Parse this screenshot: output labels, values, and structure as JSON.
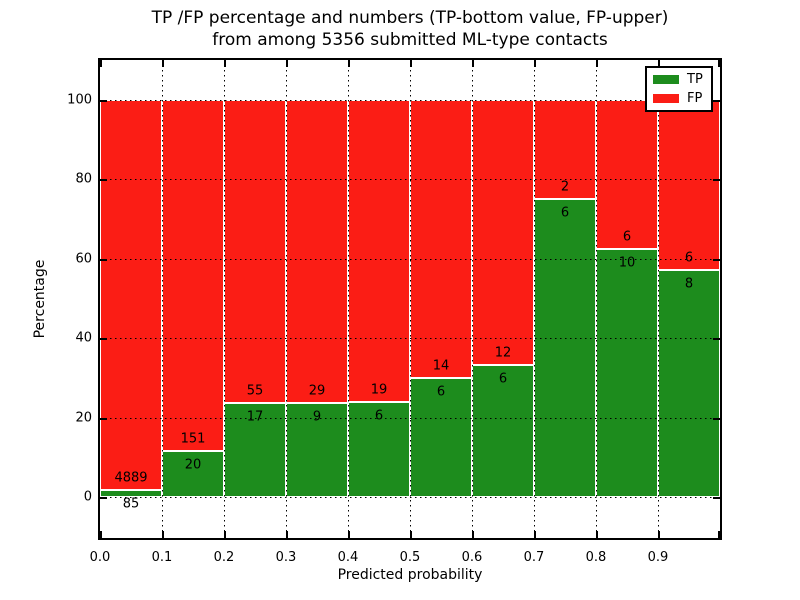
{
  "title": {
    "line1": "TP /FP percentage and numbers (TP-bottom value, FP-upper)",
    "line2": "from among 5356 submitted ML-type contacts"
  },
  "axes": {
    "x_label": "Predicted probability",
    "y_label": "Percentage",
    "x_tick_labels": [
      "0.0",
      "0.1",
      "0.2",
      "0.3",
      "0.4",
      "0.5",
      "0.6",
      "0.7",
      "0.8",
      "0.9"
    ],
    "y_tick_labels": [
      "0",
      "20",
      "40",
      "60",
      "80",
      "100"
    ],
    "y_tick_values": [
      0,
      20,
      40,
      60,
      80,
      100
    ]
  },
  "legend": [
    {
      "label": "TP",
      "color": "#1d8c1d"
    },
    {
      "label": "FP",
      "color": "#fb1d15"
    }
  ],
  "colors": {
    "tp_green": "#1d8c1d",
    "fp_red": "#fb1d15",
    "bar_edge": "#ffffff",
    "grid": "#000000",
    "background": "#ffffff"
  },
  "chart_data": {
    "type": "bar",
    "stacked": true,
    "normalized_to_percent": true,
    "title": "TP /FP percentage and numbers (TP-bottom value, FP-upper) from among 5356 submitted ML-type contacts",
    "xlabel": "Predicted probability",
    "ylabel": "Percentage",
    "xlim": [
      0.0,
      1.0
    ],
    "ylim": [
      -10,
      110
    ],
    "grid": "dotted",
    "legend_position": "upper right",
    "total_contacts": 5356,
    "bin_edges": [
      0.0,
      0.1,
      0.2,
      0.3,
      0.4,
      0.5,
      0.6,
      0.7,
      0.8,
      0.9,
      1.0
    ],
    "categories": [
      "0.0-0.1",
      "0.1-0.2",
      "0.2-0.3",
      "0.3-0.4",
      "0.4-0.5",
      "0.5-0.6",
      "0.6-0.7",
      "0.7-0.8",
      "0.8-0.9",
      "0.9-1.0"
    ],
    "series": [
      {
        "name": "TP",
        "color": "#1d8c1d",
        "counts": [
          85,
          20,
          17,
          9,
          6,
          6,
          6,
          6,
          10,
          8
        ],
        "percent_of_bin": [
          1.71,
          11.7,
          23.61,
          23.68,
          24.0,
          30.0,
          33.33,
          75.0,
          62.5,
          57.14
        ]
      },
      {
        "name": "FP",
        "color": "#fb1d15",
        "counts": [
          4889,
          151,
          55,
          29,
          19,
          14,
          12,
          2,
          6,
          6
        ],
        "percent_of_bin": [
          98.29,
          88.3,
          76.39,
          76.32,
          76.0,
          70.0,
          66.67,
          25.0,
          37.5,
          42.86
        ]
      }
    ],
    "annotation_note": "TP count printed below green segment top, FP count printed above it"
  }
}
